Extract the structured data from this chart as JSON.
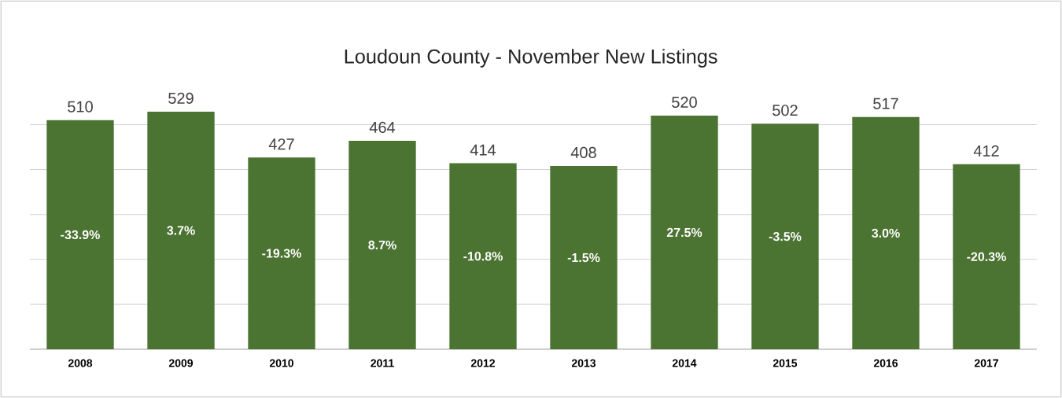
{
  "chart_data": {
    "type": "bar",
    "title": "Loudoun County - November New Listings",
    "categories": [
      "2008",
      "2009",
      "2010",
      "2011",
      "2012",
      "2013",
      "2014",
      "2015",
      "2016",
      "2017"
    ],
    "values": [
      510,
      529,
      427,
      464,
      414,
      408,
      520,
      502,
      517,
      412
    ],
    "value_labels": [
      "510",
      "529",
      "427",
      "464",
      "414",
      "408",
      "520",
      "502",
      "517",
      "412"
    ],
    "color": "#4b7331",
    "tick_labels": "x",
    "grid": "y",
    "annotations": [
      "-33.9%",
      "3.7%",
      "-19.3%",
      "8.7%",
      "-10.8%",
      "-1.5%",
      "27.5%",
      "-3.5%",
      "3.0%",
      "-20.3%"
    ]
  }
}
